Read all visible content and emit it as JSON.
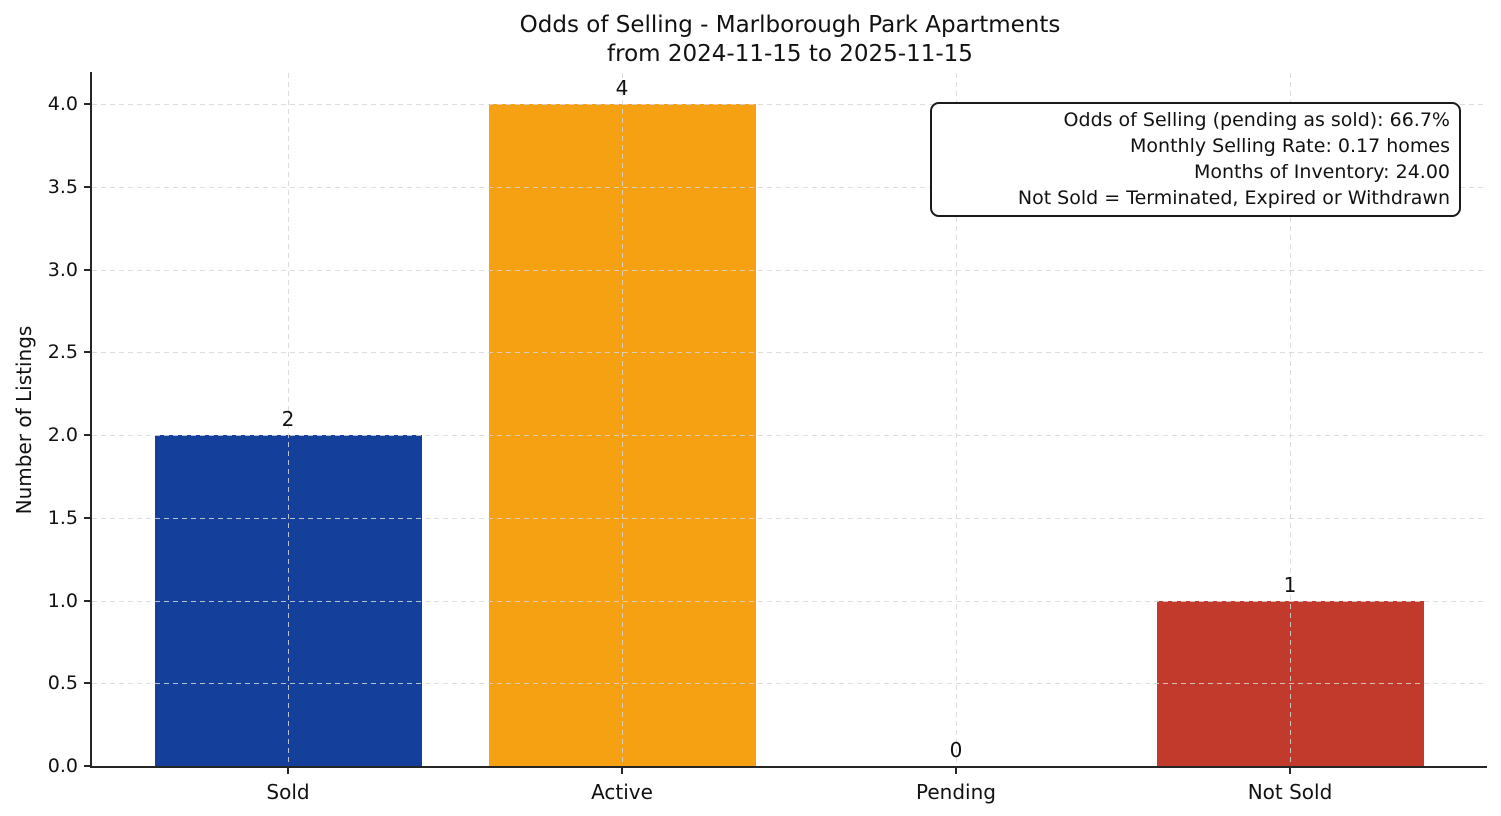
{
  "chart_data": {
    "type": "bar",
    "title": "Odds of Selling - Marlborough Park Apartments",
    "subtitle": "from 2024-11-15 to 2025-11-15",
    "categories": [
      "Sold",
      "Active",
      "Pending",
      "Not Sold"
    ],
    "values": [
      2,
      4,
      0,
      1
    ],
    "value_labels": [
      "2",
      "4",
      "0",
      "1"
    ],
    "bar_colors": [
      "#14409c",
      "#f5a111",
      null,
      "#c23a2b"
    ],
    "xlabel": "",
    "ylabel": "Number of Listings",
    "ylim": [
      0,
      4.19
    ],
    "yticks": [
      0,
      0.5,
      1,
      1.5,
      2,
      2.5,
      3,
      3.5,
      4
    ],
    "ytick_labels": [
      "0.0",
      "0.5",
      "1.0",
      "1.5",
      "2.0",
      "2.5",
      "3.0",
      "3.5",
      "4.0"
    ],
    "grid": {
      "visible": true,
      "style": "dashed",
      "color": "#d6d6d6",
      "axis": "both"
    },
    "legend": null,
    "annotation_box": {
      "position": "top-right",
      "align": "right",
      "lines": [
        "Odds of Selling (pending as sold): 66.7%",
        "Monthly Selling Rate: 0.17 homes",
        "Months of Inventory: 24.00",
        "Not Sold = Terminated, Expired or Withdrawn"
      ]
    },
    "colors": {
      "axis": "#262626",
      "text": "#111111",
      "background": "#ffffff"
    }
  }
}
